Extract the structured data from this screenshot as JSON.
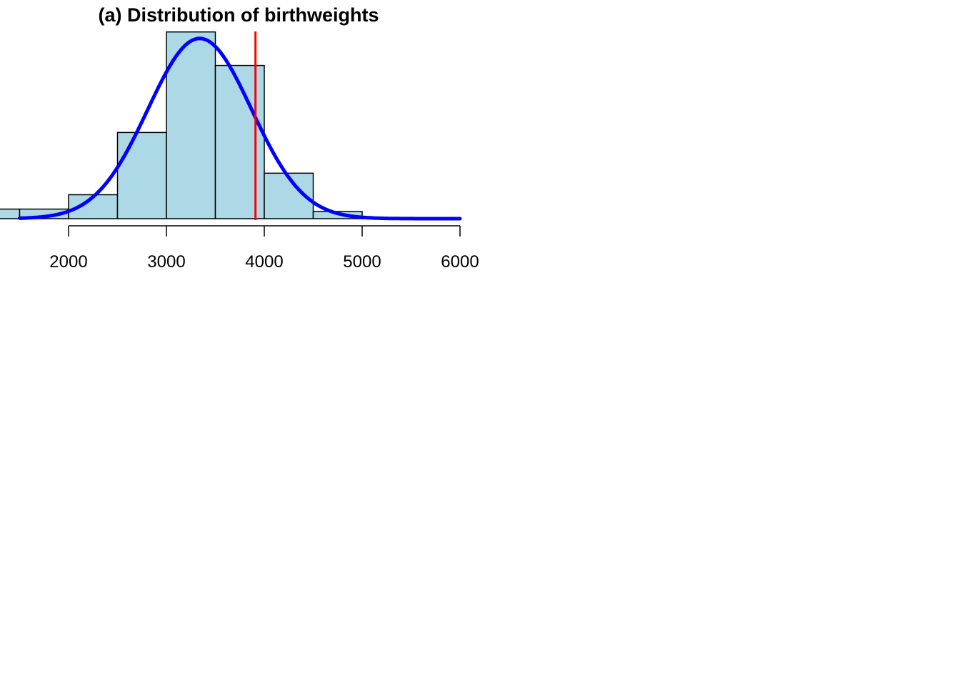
{
  "chart_data": {
    "type": "bar",
    "title": "(a) Distribution of birthweights",
    "xlabel": "",
    "ylabel": "",
    "xlim": [
      1500,
      6000
    ],
    "ylim": [
      0,
      0.0008
    ],
    "bins": [
      {
        "start": 1000,
        "end": 1500,
        "density": 4e-05
      },
      {
        "start": 1500,
        "end": 2000,
        "density": 4e-05
      },
      {
        "start": 2000,
        "end": 2500,
        "density": 0.0001
      },
      {
        "start": 2500,
        "end": 3000,
        "density": 0.00036
      },
      {
        "start": 3000,
        "end": 3500,
        "density": 0.00078
      },
      {
        "start": 3500,
        "end": 4000,
        "density": 0.00064
      },
      {
        "start": 4000,
        "end": 4500,
        "density": 0.00019
      },
      {
        "start": 4500,
        "end": 5000,
        "density": 3e-05
      },
      {
        "start": 5000,
        "end": 5500,
        "density": 3e-06
      }
    ],
    "x_ticks": [
      2000,
      3000,
      4000,
      5000,
      6000
    ],
    "x_tick_labels": [
      "2000",
      "3000",
      "4000",
      "5000",
      "6000"
    ],
    "density_curve": {
      "type": "normal",
      "mean": 3340,
      "sd": 530,
      "from": 1500,
      "to": 6000
    },
    "reference_line": {
      "x": 3910
    },
    "colors": {
      "bars": "#add8e6",
      "bar_border": "#000000",
      "curve": "#0000ff",
      "reference_line": "#ff0000"
    },
    "grid": false,
    "legend": "none"
  }
}
